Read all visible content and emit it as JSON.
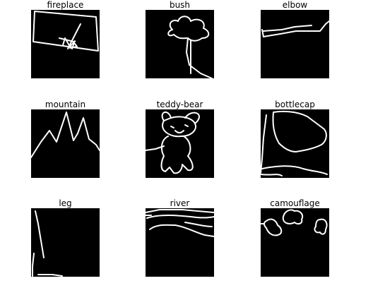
{
  "grid": {
    "panels": [
      {
        "title": "fireplace",
        "icon": "fireplace-doodle"
      },
      {
        "title": "bush",
        "icon": "bush-doodle"
      },
      {
        "title": "elbow",
        "icon": "elbow-doodle"
      },
      {
        "title": "mountain",
        "icon": "mountain-doodle"
      },
      {
        "title": "teddy-bear",
        "icon": "teddy-bear-doodle"
      },
      {
        "title": "bottlecap",
        "icon": "bottlecap-doodle"
      },
      {
        "title": "leg",
        "icon": "leg-doodle"
      },
      {
        "title": "river",
        "icon": "river-doodle"
      },
      {
        "title": "camouflage",
        "icon": "camouflage-doodle"
      }
    ]
  },
  "colors": {
    "background": "#ffffff",
    "panel": "#000000",
    "stroke": "#ffffff"
  }
}
